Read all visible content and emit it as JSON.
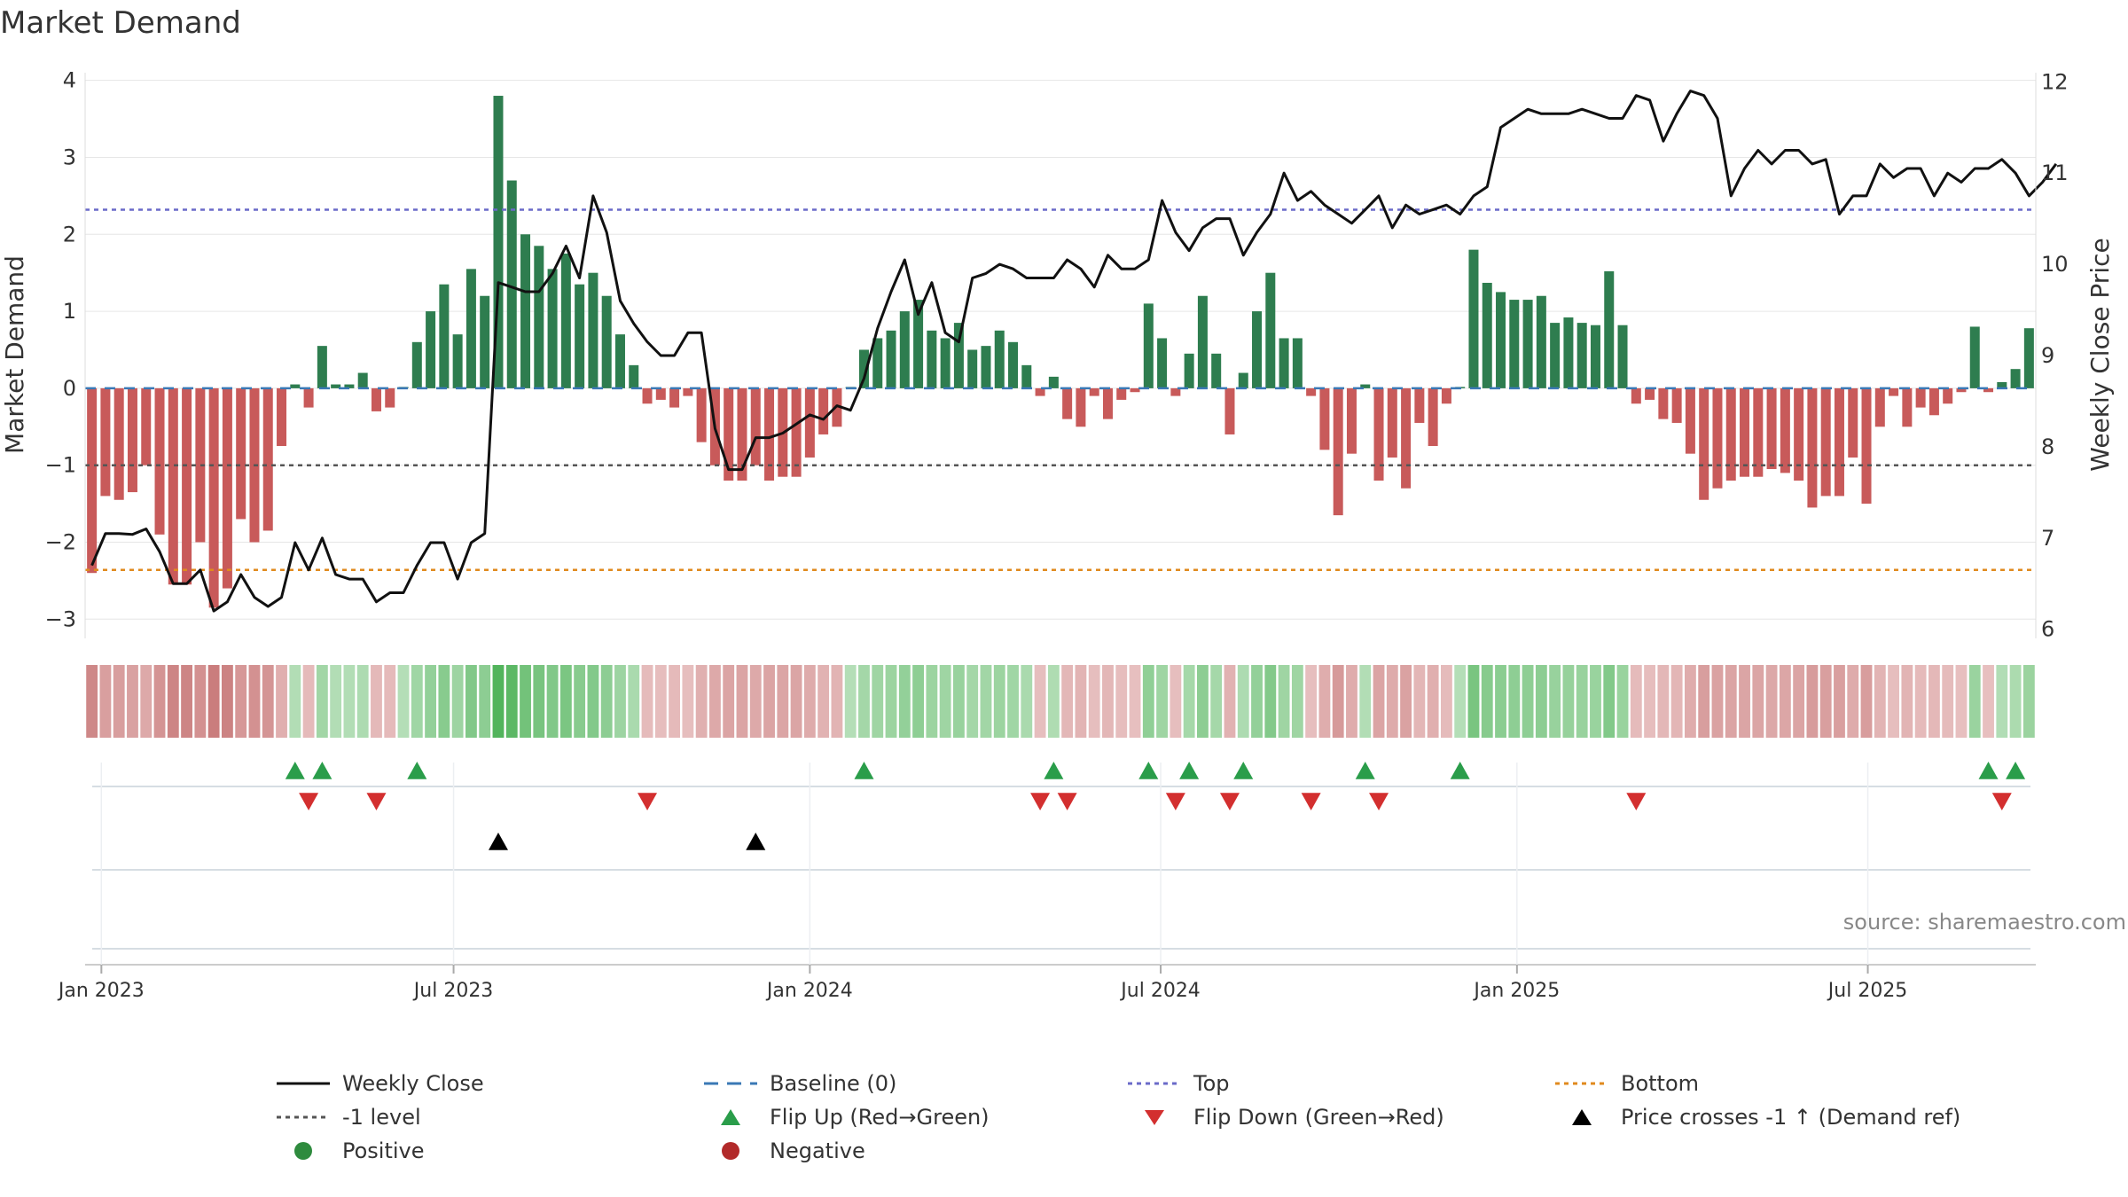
{
  "title": "Market Demand",
  "source": "source: sharemaestro.com",
  "colors": {
    "positive": "#2e7d4f",
    "negative": "#c85a5a",
    "close": "#111111",
    "baseline": "#3a78b5",
    "top": "#6a6ac8",
    "bottom": "#e08a1e",
    "minus1": "#555555",
    "flip_up": "#2a9d4a",
    "flip_down": "#d32f2f",
    "cross": "#000000",
    "grid": "#e6e6e6"
  },
  "chart_data": {
    "type": "bar",
    "title": "Market Demand",
    "ylabel": "Market Demand",
    "y2label": "Weekly Close Price",
    "ylim": [
      -3.25,
      4.1
    ],
    "y2lim": [
      5.9,
      12.1
    ],
    "yticks": [
      "4",
      "3",
      "2",
      "1",
      "0",
      "−1",
      "−2",
      "−3"
    ],
    "ytick_values": [
      4,
      3,
      2,
      1,
      0,
      -1,
      -2,
      -3
    ],
    "y2ticks": [
      "12",
      "11",
      "10",
      "9",
      "8",
      "7",
      "6"
    ],
    "y2tick_values": [
      12,
      11,
      10,
      9,
      8,
      7,
      6
    ],
    "xticks": [
      "Jan 2023",
      "Jul 2023",
      "Jan 2024",
      "Jul 2024",
      "Jan 2025",
      "Jul 2025"
    ],
    "xtick_weeks": [
      0.7,
      26.7,
      53,
      78.9,
      105.2,
      131.1
    ],
    "top_level": 2.32,
    "bottom_level": -2.36,
    "minus1_level": -1,
    "demand": [
      -2.4,
      -1.4,
      -1.45,
      -1.35,
      -1.0,
      -1.9,
      -2.55,
      -2.55,
      -2.0,
      -2.85,
      -2.6,
      -1.7,
      -2.0,
      -1.85,
      -0.75,
      0.05,
      -0.25,
      0.55,
      0.05,
      0.05,
      0.2,
      -0.3,
      -0.25,
      0.0,
      0.6,
      1.0,
      1.35,
      0.7,
      1.55,
      1.2,
      3.8,
      2.7,
      2.0,
      1.85,
      1.55,
      1.75,
      1.35,
      1.5,
      1.2,
      0.7,
      0.3,
      -0.2,
      -0.15,
      -0.25,
      -0.1,
      -0.7,
      -1.0,
      -1.2,
      -1.2,
      -1.0,
      -1.2,
      -1.15,
      -1.15,
      -0.9,
      -0.6,
      -0.5,
      0.0,
      0.5,
      0.65,
      0.75,
      1.0,
      1.15,
      0.75,
      0.65,
      0.85,
      0.5,
      0.55,
      0.75,
      0.6,
      0.3,
      -0.1,
      0.15,
      -0.4,
      -0.5,
      -0.1,
      -0.4,
      -0.15,
      -0.05,
      1.1,
      0.65,
      -0.1,
      0.45,
      1.2,
      0.45,
      -0.6,
      0.2,
      1.0,
      1.5,
      0.65,
      0.65,
      -0.1,
      -0.8,
      -1.65,
      -0.85,
      0.05,
      -1.2,
      -0.9,
      -1.3,
      -0.45,
      -0.75,
      -0.2,
      0.0,
      1.8,
      1.37,
      1.25,
      1.15,
      1.15,
      1.2,
      0.85,
      0.92,
      0.85,
      0.82,
      1.52,
      0.82,
      -0.2,
      -0.15,
      -0.4,
      -0.45,
      -0.85,
      -1.45,
      -1.3,
      -1.2,
      -1.15,
      -1.15,
      -1.05,
      -1.1,
      -1.2,
      -1.55,
      -1.4,
      -1.4,
      -0.9,
      -1.5,
      -0.5,
      -0.1,
      -0.5,
      -0.25,
      -0.35,
      -0.2,
      -0.05,
      0.8,
      -0.05,
      0.08,
      0.25,
      0.78
    ],
    "close": [
      6.7,
      7.05,
      7.05,
      7.04,
      7.1,
      6.85,
      6.5,
      6.5,
      6.65,
      6.2,
      6.3,
      6.6,
      6.35,
      6.25,
      6.35,
      6.95,
      6.65,
      7.0,
      6.6,
      6.55,
      6.55,
      6.3,
      6.4,
      6.4,
      6.7,
      6.95,
      6.95,
      6.55,
      6.95,
      7.05,
      9.8,
      9.75,
      9.7,
      9.7,
      9.9,
      10.2,
      9.85,
      10.75,
      10.35,
      9.6,
      9.35,
      9.15,
      9.0,
      9.0,
      9.25,
      9.25,
      8.2,
      7.75,
      7.75,
      8.1,
      8.1,
      8.15,
      8.25,
      8.35,
      8.3,
      8.45,
      8.4,
      8.75,
      9.3,
      9.7,
      10.05,
      9.45,
      9.8,
      9.25,
      9.15,
      9.85,
      9.9,
      10.0,
      9.95,
      9.85,
      9.85,
      9.85,
      10.05,
      9.95,
      9.75,
      10.1,
      9.95,
      9.95,
      10.05,
      10.7,
      10.35,
      10.15,
      10.4,
      10.5,
      10.5,
      10.1,
      10.35,
      10.55,
      11.0,
      10.7,
      10.8,
      10.65,
      10.55,
      10.45,
      10.6,
      10.75,
      10.4,
      10.65,
      10.55,
      10.6,
      10.65,
      10.55,
      10.75,
      10.85,
      11.5,
      11.6,
      11.7,
      11.65,
      11.65,
      11.65,
      11.7,
      11.65,
      11.6,
      11.6,
      11.85,
      11.8,
      11.35,
      11.65,
      11.9,
      11.85,
      11.6,
      10.75,
      11.05,
      11.25,
      11.1,
      11.25,
      11.25,
      11.1,
      11.15,
      10.55,
      10.75,
      10.75,
      11.1,
      10.95,
      11.05,
      11.05,
      10.75,
      11.0,
      10.9,
      11.05,
      11.05,
      11.15,
      11.0,
      10.75,
      10.9,
      11.1
    ],
    "flip_up_weeks": [
      15,
      17,
      24,
      57,
      71,
      78,
      81,
      85,
      94,
      101,
      140,
      142
    ],
    "flip_down_weeks": [
      16,
      21,
      41,
      70,
      72,
      80,
      84,
      90,
      95,
      114,
      141
    ],
    "cross_weeks": [
      30,
      49
    ]
  },
  "legend": [
    {
      "label": "Weekly Close",
      "icon": "line-solid-black"
    },
    {
      "label": "Baseline (0)",
      "icon": "line-dashed-blue"
    },
    {
      "label": "Top",
      "icon": "line-dotted-purple"
    },
    {
      "label": "Bottom",
      "icon": "line-dotted-orange"
    },
    {
      "label": "-1 level",
      "icon": "line-dotted-gray"
    },
    {
      "label": "Flip Up (Red→Green)",
      "icon": "triangle-up-green"
    },
    {
      "label": "Flip Down (Green→Red)",
      "icon": "triangle-down-red"
    },
    {
      "label": "Price crosses -1 ↑ (Demand ref)",
      "icon": "triangle-up-black"
    },
    {
      "label": "Positive",
      "icon": "circle-green"
    },
    {
      "label": "Negative",
      "icon": "circle-red"
    }
  ]
}
